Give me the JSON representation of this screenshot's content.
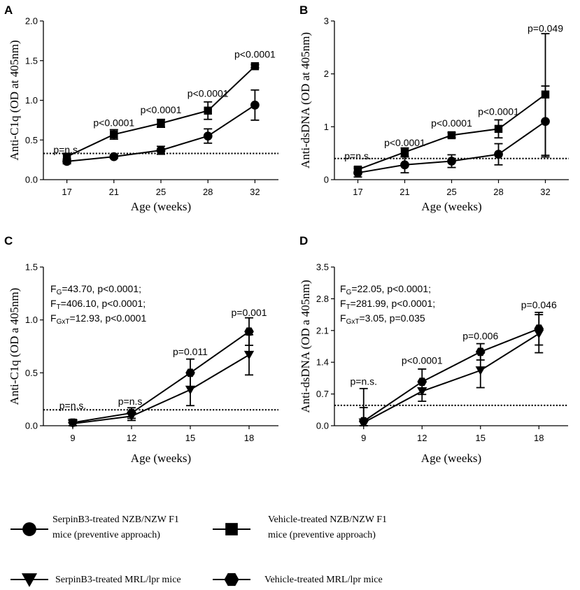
{
  "chart_data": [
    {
      "panel": "A",
      "type": "line",
      "ylabel": "Anti-C1q (OD at 405nm)",
      "xlabel": "Age (weeks)",
      "categories": [
        "17",
        "21",
        "25",
        "28",
        "32"
      ],
      "ylim": [
        0,
        2.0
      ],
      "yticks": [
        "0.0",
        "0.5",
        "1.0",
        "1.5",
        "2.0"
      ],
      "threshold": 0.33,
      "series": [
        {
          "name": "Vehicle-treated NZB/NZW F1",
          "marker": "square",
          "values": [
            0.29,
            0.57,
            0.71,
            0.87,
            1.43
          ],
          "err": [
            0.03,
            0.06,
            0.05,
            0.11,
            0.02
          ]
        },
        {
          "name": "SerpinB3-treated NZB/NZW F1",
          "marker": "circle",
          "values": [
            0.23,
            0.29,
            0.37,
            0.55,
            0.94
          ],
          "err": [
            0.03,
            0.02,
            0.05,
            0.09,
            0.19
          ]
        }
      ],
      "annotations": [
        {
          "cat": 0,
          "y": 0.38,
          "text": "p=n.s."
        },
        {
          "cat": 1,
          "y": 0.72,
          "text": "p<0.0001"
        },
        {
          "cat": 2,
          "y": 0.88,
          "text": "p<0.0001"
        },
        {
          "cat": 3,
          "y": 1.09,
          "text": "p<0.0001"
        },
        {
          "cat": 4,
          "y": 1.58,
          "text": "p<0.0001"
        }
      ],
      "stats": []
    },
    {
      "panel": "B",
      "type": "line",
      "ylabel": "Anti-dsDNA (OD at 405nm)",
      "xlabel": "Age (weeks)",
      "categories": [
        "17",
        "21",
        "25",
        "28",
        "32"
      ],
      "ylim": [
        0,
        3
      ],
      "yticks": [
        "0",
        "1",
        "2",
        "3"
      ],
      "threshold": 0.4,
      "series": [
        {
          "name": "Vehicle-treated NZB/NZW F1",
          "marker": "square",
          "values": [
            0.19,
            0.52,
            0.84,
            0.96,
            1.61
          ],
          "err": [
            0.05,
            0.08,
            0.05,
            0.17,
            1.15
          ]
        },
        {
          "name": "SerpinB3-treated NZB/NZW F1",
          "marker": "circle",
          "values": [
            0.13,
            0.28,
            0.35,
            0.48,
            1.1
          ],
          "err": [
            0.08,
            0.15,
            0.12,
            0.2,
            0.67
          ]
        }
      ],
      "annotations": [
        {
          "cat": 0,
          "y": 0.45,
          "text": "p=n.s."
        },
        {
          "cat": 1,
          "y": 0.7,
          "text": "p<0.0001"
        },
        {
          "cat": 2,
          "y": 1.07,
          "text": "p<0.0001"
        },
        {
          "cat": 3,
          "y": 1.29,
          "text": "p<0.0001"
        },
        {
          "cat": 4,
          "y": 2.86,
          "text": "p=0.049"
        }
      ],
      "stats": []
    },
    {
      "panel": "C",
      "type": "line",
      "ylabel": "Anti-C1q (OD a 405nm)",
      "xlabel": "Age (weeks)",
      "categories": [
        "9",
        "12",
        "15",
        "18"
      ],
      "ylim": [
        0,
        1.5
      ],
      "yticks": [
        "0.0",
        "0.5",
        "1.0",
        "1.5"
      ],
      "threshold": 0.15,
      "series": [
        {
          "name": "Vehicle-treated MRL/lpr",
          "marker": "hexagon",
          "values": [
            0.03,
            0.12,
            0.5,
            0.89
          ],
          "err": [
            0.03,
            0.05,
            0.13,
            0.13
          ]
        },
        {
          "name": "SerpinB3-treated MRL/lpr",
          "marker": "triangle-down",
          "values": [
            0.02,
            0.09,
            0.34,
            0.67
          ],
          "err": [
            0.03,
            0.04,
            0.15,
            0.19
          ]
        }
      ],
      "annotations": [
        {
          "cat": 0,
          "y": 0.19,
          "text": "p=n.s."
        },
        {
          "cat": 1,
          "y": 0.23,
          "text": "p=n.s."
        },
        {
          "cat": 2,
          "y": 0.7,
          "text": "p=0.011"
        },
        {
          "cat": 3,
          "y": 1.07,
          "text": "p=0.001"
        }
      ],
      "stats": [
        {
          "F": "F",
          "sub": "G",
          "rest": "=43.70, p<0.0001;"
        },
        {
          "F": "F",
          "sub": "T",
          "rest": "=406.10, p<0.0001;"
        },
        {
          "F": "F",
          "sub": "GxT",
          "rest": "=12.93, p<0.0001"
        }
      ]
    },
    {
      "panel": "D",
      "type": "line",
      "ylabel": "Anti-dsDNA (OD a 405nm)",
      "xlabel": "Age (weeks)",
      "categories": [
        "9",
        "12",
        "15",
        "18"
      ],
      "ylim": [
        0,
        3.5
      ],
      "yticks": [
        "0.0",
        "0.7",
        "1.4",
        "2.1",
        "2.8",
        "3.5"
      ],
      "threshold": 0.45,
      "series": [
        {
          "name": "Vehicle-treated MRL/lpr",
          "marker": "hexagon",
          "values": [
            0.1,
            0.97,
            1.63,
            2.14
          ],
          "err": [
            0.72,
            0.28,
            0.18,
            0.36
          ]
        },
        {
          "name": "SerpinB3-treated MRL/lpr",
          "marker": "triangle-down",
          "values": [
            0.07,
            0.76,
            1.22,
            2.03
          ],
          "err": [
            0.33,
            0.22,
            0.38,
            0.42
          ]
        }
      ],
      "annotations": [
        {
          "cat": 0,
          "y": 0.98,
          "text": "p=n.s."
        },
        {
          "cat": 1,
          "y": 1.44,
          "text": "p<0.0001"
        },
        {
          "cat": 2,
          "y": 1.98,
          "text": "p=0.006"
        },
        {
          "cat": 3,
          "y": 2.67,
          "text": "p=0.046"
        }
      ],
      "stats": [
        {
          "F": "F",
          "sub": "G",
          "rest": "=22.05, p<0.0001;"
        },
        {
          "F": "F",
          "sub": "T",
          "rest": "=281.99, p<0.0001;"
        },
        {
          "F": "F",
          "sub": "GxT",
          "rest": "=3.05, p=0.035"
        }
      ]
    }
  ],
  "legend": [
    {
      "marker": "circle",
      "lines": [
        "SerpinB3-treated NZB/NZW  F1",
        "mice (preventive approach)"
      ]
    },
    {
      "marker": "square",
      "lines": [
        "Vehicle-treated NZB/NZW F1",
        "mice (preventive approach)"
      ]
    },
    {
      "marker": "triangle-down",
      "lines": [
        "SerpinB3-treated MRL/lpr mice"
      ]
    },
    {
      "marker": "hexagon",
      "lines": [
        "Vehicle-treated MRL/lpr mice"
      ]
    }
  ]
}
